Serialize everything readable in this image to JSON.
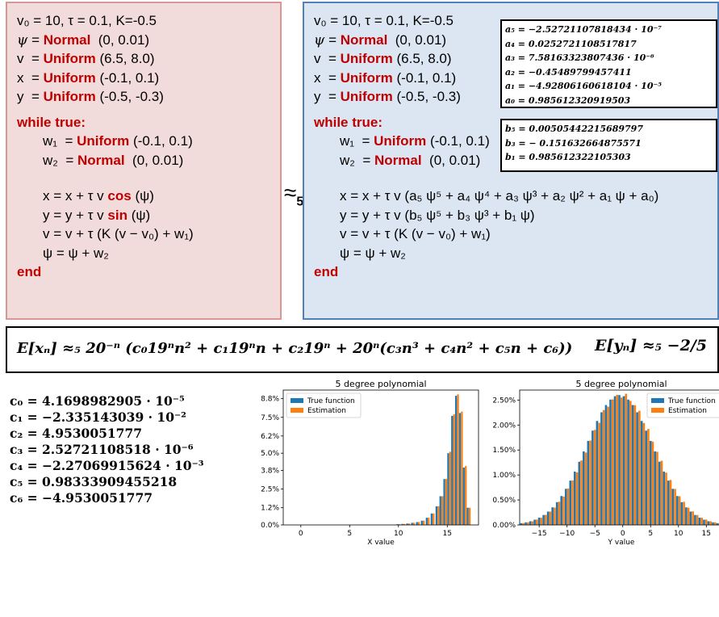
{
  "left_program": {
    "params": "v₀ = 10, τ = 0.1, K=-0.5",
    "psi_init": {
      "var": "ψ",
      "dist": "Normal",
      "args": "(0, 0.01)"
    },
    "v_init": {
      "var": "v",
      "dist": "Uniform",
      "args": "(6.5, 8.0)"
    },
    "x_init": {
      "var": "x",
      "dist": "Uniform",
      "args": "(-0.1, 0.1)"
    },
    "y_init": {
      "var": "y",
      "dist": "Uniform",
      "args": "(-0.5, -0.3)"
    },
    "loop": "while true:",
    "w1": {
      "var": "w₁",
      "dist": "Uniform",
      "args": "(-0.1, 0.1)"
    },
    "w2": {
      "var": "w₂",
      "dist": "Normal",
      "args": "(0, 0.01)"
    },
    "x_update": {
      "pre": "x = x + τ v ",
      "fn": "cos",
      "post": " (ψ)"
    },
    "y_update": {
      "pre": "y = y + τ v ",
      "fn": "sin",
      "post": " (ψ)"
    },
    "v_update": "v = v + τ (K (v − v₀) + w₁)",
    "psi_update": "ψ = ψ + w₂",
    "end": "end"
  },
  "approx_symbol": "≈",
  "approx_sub": "5",
  "right_program": {
    "params": "v₀ = 10, τ = 0.1, K=-0.5",
    "psi_init": {
      "var": "ψ",
      "dist": "Normal",
      "args": "(0, 0.01)"
    },
    "v_init": {
      "var": "v",
      "dist": "Uniform",
      "args": "(6.5, 8.0)"
    },
    "x_init": {
      "var": "x",
      "dist": "Uniform",
      "args": "(-0.1, 0.1)"
    },
    "y_init": {
      "var": "y",
      "dist": "Uniform",
      "args": "(-0.5, -0.3)"
    },
    "loop": "while true:",
    "w1": {
      "var": "w₁",
      "dist": "Uniform",
      "args": "(-0.1, 0.1)"
    },
    "w2": {
      "var": "w₂",
      "dist": "Normal",
      "args": "(0, 0.01)"
    },
    "x_update": "x = x + τ v (a₅ ψ⁵ + a₄ ψ⁴ + a₃ ψ³ + a₂ ψ² + a₁ ψ + a₀)",
    "y_update": "y = y + τ v (b₅ ψ⁵ + b₃ ψ³ + b₁ ψ)",
    "v_update": "v = v + τ (K (v − v₀) + w₁)",
    "psi_update": "ψ = ψ + w₂",
    "end": "end"
  },
  "a_coeffs": [
    "a₅ = −2.52721107818434 · 10⁻⁷",
    "a₄ = 0.0252721108517817",
    "a₃ = 7.58163323807436 · 10⁻⁶",
    "a₂ = −0.45489799457411",
    "a₁ = −4.92806160618104 · 10⁻⁵",
    "a₀ = 0.985612320919503"
  ],
  "b_coeffs": [
    "b₅ = 0.00505442215689797",
    "b₃ = − 0.151632664875571",
    "b₁ = 0.985612322105303"
  ],
  "expectation_x": "E[xₙ] ≈₅ 20⁻ⁿ (c₀19ⁿn² + c₁19ⁿn + c₂19ⁿ + 20ⁿ(c₃n³ + c₄n² + c₅n + c₆))",
  "expectation_y": "E[yₙ] ≈₅ −2/5",
  "c_coeffs": [
    "c₀ = 4.1698982905 · 10⁻⁵",
    "c₁ = −2.335143039 · 10⁻²",
    "c₂ = 4.9530051777",
    "c₃ = 2.52721108518 · 10⁻⁶",
    "c₄ = −2.27069915624 · 10⁻³",
    "c₅ = 0.98333909455218",
    "c₆ = −4.9530051777"
  ],
  "colors": {
    "true_function": "#1f77b4",
    "estimation": "#ff7f0e",
    "keyword": "#c00000"
  },
  "chart_data": [
    {
      "type": "bar",
      "title": "5 degree polynomial",
      "xlabel": "X value",
      "ylabel": "",
      "xlim": [
        -1.8,
        18.2
      ],
      "ylim": [
        0,
        9.4
      ],
      "x_ticks": [
        0,
        5,
        10,
        15
      ],
      "y_ticks": [
        0.0,
        1.2,
        2.5,
        3.8,
        5.0,
        6.2,
        7.5,
        8.8
      ],
      "y_tick_labels": [
        "0.0%",
        "1.2%",
        "2.5%",
        "3.8%",
        "5.0%",
        "6.2%",
        "7.5%",
        "8.8%"
      ],
      "legend": [
        "True function",
        "Estimation"
      ],
      "legend_position": "top-left",
      "bin_centers": [
        10.0,
        10.5,
        11.0,
        11.5,
        12.0,
        12.5,
        13.0,
        13.5,
        14.0,
        14.4,
        14.8,
        15.2,
        15.6,
        16.0,
        16.4,
        16.8,
        17.2
      ],
      "series": [
        {
          "name": "True function",
          "values": [
            0.05,
            0.07,
            0.1,
            0.15,
            0.2,
            0.3,
            0.5,
            0.8,
            1.3,
            2.0,
            3.2,
            5.0,
            7.6,
            9.0,
            7.8,
            4.0,
            1.2
          ]
        },
        {
          "name": "Estimation",
          "values": [
            0.05,
            0.07,
            0.1,
            0.15,
            0.2,
            0.3,
            0.5,
            0.8,
            1.3,
            2.0,
            3.2,
            5.1,
            7.7,
            9.1,
            7.9,
            4.1,
            1.2
          ]
        }
      ]
    },
    {
      "type": "bar",
      "title": "5 degree polynomial",
      "xlabel": "Y value",
      "ylabel": "",
      "xlim": [
        -18.5,
        18
      ],
      "ylim": [
        0,
        2.7
      ],
      "x_ticks": [
        -15,
        -10,
        -5,
        0,
        5,
        10,
        15
      ],
      "y_ticks": [
        0.0,
        0.5,
        1.0,
        1.5,
        2.0,
        2.5
      ],
      "y_tick_labels": [
        "0.00%",
        "0.50%",
        "1.00%",
        "1.50%",
        "2.00%",
        "2.50%"
      ],
      "legend": [
        "True function",
        "Estimation"
      ],
      "legend_position": "top-right",
      "distribution": {
        "shape": "normal",
        "mean": -0.4,
        "std": 6.0,
        "peak_percent": 2.6,
        "bin_width": 0.8,
        "range": [
          -18,
          18
        ]
      },
      "series": [
        {
          "name": "True function"
        },
        {
          "name": "Estimation"
        }
      ]
    }
  ]
}
